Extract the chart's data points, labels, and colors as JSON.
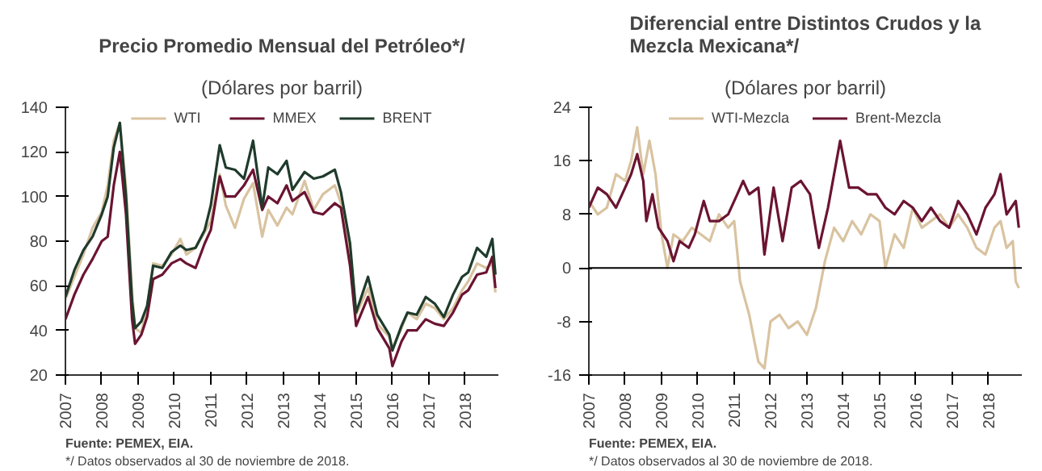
{
  "chart_data": [
    {
      "type": "line",
      "title": "Precio Promedio Mensual del Petróleo*/",
      "subtitle": "(Dólares por barril)",
      "x": [
        "2007-01",
        "2007-04",
        "2007-07",
        "2007-10",
        "2008-01",
        "2008-03",
        "2008-05",
        "2008-07",
        "2008-09",
        "2008-11",
        "2008-12",
        "2009-02",
        "2009-04",
        "2009-06",
        "2009-09",
        "2009-12",
        "2010-03",
        "2010-05",
        "2010-08",
        "2010-11",
        "2011-01",
        "2011-04",
        "2011-06",
        "2011-09",
        "2011-12",
        "2012-03",
        "2012-06",
        "2012-08",
        "2012-11",
        "2013-02",
        "2013-04",
        "2013-08",
        "2013-11",
        "2014-02",
        "2014-06",
        "2014-08",
        "2014-11",
        "2015-01",
        "2015-05",
        "2015-08",
        "2015-12",
        "2016-01",
        "2016-04",
        "2016-06",
        "2016-09",
        "2016-12",
        "2017-03",
        "2017-06",
        "2017-09",
        "2017-12",
        "2018-02",
        "2018-05",
        "2018-08",
        "2018-10",
        "2018-11"
      ],
      "series": [
        {
          "name": "WTI",
          "color": "#d9c3a0",
          "values": [
            54,
            64,
            74,
            86,
            93,
            105,
            125,
            133,
            104,
            57,
            41,
            39,
            50,
            70,
            69,
            74,
            81,
            74,
            77,
            84,
            89,
            110,
            96,
            86,
            99,
            106,
            82,
            94,
            87,
            95,
            92,
            107,
            94,
            101,
            105,
            97,
            76,
            47,
            59,
            43,
            37,
            32,
            41,
            48,
            45,
            52,
            50,
            45,
            50,
            58,
            62,
            70,
            68,
            70,
            57
          ]
        },
        {
          "name": "MMEX",
          "color": "#6b1432",
          "values": [
            45,
            56,
            65,
            72,
            80,
            82,
            105,
            120,
            92,
            45,
            34,
            38,
            46,
            63,
            65,
            70,
            72,
            70,
            68,
            79,
            85,
            109,
            100,
            100,
            105,
            112,
            94,
            100,
            97,
            105,
            98,
            102,
            93,
            92,
            97,
            95,
            69,
            42,
            55,
            41,
            32,
            24,
            35,
            40,
            40,
            45,
            43,
            42,
            48,
            56,
            58,
            65,
            66,
            73,
            59
          ]
        },
        {
          "name": "BRENT",
          "color": "#1f3b2c",
          "values": [
            55,
            67,
            76,
            82,
            92,
            100,
            122,
            133,
            100,
            53,
            41,
            44,
            51,
            69,
            68,
            75,
            78,
            76,
            77,
            85,
            96,
            123,
            113,
            112,
            108,
            125,
            95,
            113,
            110,
            116,
            103,
            111,
            108,
            109,
            112,
            102,
            79,
            48,
            64,
            47,
            38,
            31,
            42,
            48,
            47,
            55,
            52,
            46,
            56,
            64,
            66,
            77,
            73,
            81,
            65
          ]
        }
      ],
      "xlim": [
        "2007-01",
        "2018-12"
      ],
      "xticks": [
        "2007",
        "2008",
        "2009",
        "2010",
        "2011",
        "2012",
        "2013",
        "2014",
        "2015",
        "2016",
        "2017",
        "2018"
      ],
      "ylim": [
        20,
        140
      ],
      "yticks": [
        20,
        40,
        60,
        80,
        100,
        120,
        140
      ],
      "grid": false,
      "legend": "top",
      "marker": "none",
      "line_style": "solid",
      "annotations": [
        "Fuente: PEMEX, EIA.",
        "*/ Datos observados al 30 de noviembre de 2018."
      ]
    },
    {
      "type": "line",
      "title": "Diferencial entre Distintos Crudos y la Mezcla Mexicana*/",
      "subtitle": "(Dólares por barril)",
      "series": [
        {
          "name": "WTI-Mezcla",
          "color": "#d9c3a0",
          "x": [
            "2007-01",
            "2007-04",
            "2007-07",
            "2007-10",
            "2008-01",
            "2008-03",
            "2008-05",
            "2008-07",
            "2008-09",
            "2008-11",
            "2009-01",
            "2009-03",
            "2009-05",
            "2009-08",
            "2009-11",
            "2010-02",
            "2010-05",
            "2010-08",
            "2010-11",
            "2011-01",
            "2011-03",
            "2011-06",
            "2011-09",
            "2011-11",
            "2012-01",
            "2012-04",
            "2012-07",
            "2012-10",
            "2013-01",
            "2013-04",
            "2013-07",
            "2013-10",
            "2014-01",
            "2014-04",
            "2014-07",
            "2014-10",
            "2015-01",
            "2015-03",
            "2015-06",
            "2015-09",
            "2015-12",
            "2016-03",
            "2016-06",
            "2016-09",
            "2016-12",
            "2017-03",
            "2017-06",
            "2017-09",
            "2017-12",
            "2018-03",
            "2018-05",
            "2018-07",
            "2018-09",
            "2018-10",
            "2018-11"
          ],
          "values": [
            10,
            8,
            9,
            14,
            13,
            16,
            21,
            14,
            19,
            14,
            5,
            0,
            5,
            4,
            6,
            5,
            4,
            8,
            6,
            7,
            -2,
            -7,
            -14,
            -15,
            -8,
            -7,
            -9,
            -8,
            -10,
            -6,
            1,
            6,
            4,
            7,
            5,
            8,
            7,
            0,
            5,
            3,
            9,
            6,
            7,
            8,
            6,
            8,
            6,
            3,
            2,
            6,
            7,
            3,
            4,
            -2,
            -3
          ]
        },
        {
          "name": "Brent-Mezcla",
          "color": "#6b1432",
          "x": [
            "2007-01",
            "2007-04",
            "2007-07",
            "2007-10",
            "2008-01",
            "2008-03",
            "2008-05",
            "2008-07",
            "2008-08",
            "2008-10",
            "2008-12",
            "2009-03",
            "2009-05",
            "2009-07",
            "2009-10",
            "2009-12",
            "2010-03",
            "2010-05",
            "2010-08",
            "2010-11",
            "2011-02",
            "2011-04",
            "2011-06",
            "2011-09",
            "2011-11",
            "2012-02",
            "2012-05",
            "2012-08",
            "2012-11",
            "2013-02",
            "2013-05",
            "2013-08",
            "2013-12",
            "2014-03",
            "2014-06",
            "2014-09",
            "2014-12",
            "2015-03",
            "2015-06",
            "2015-09",
            "2015-12",
            "2016-03",
            "2016-06",
            "2016-09",
            "2016-12",
            "2017-03",
            "2017-06",
            "2017-09",
            "2017-12",
            "2018-03",
            "2018-05",
            "2018-07",
            "2018-10",
            "2018-11"
          ],
          "values": [
            9,
            12,
            11,
            9,
            12,
            14,
            17,
            13,
            7,
            11,
            6,
            4,
            1,
            4,
            3,
            5,
            10,
            7,
            7,
            8,
            11,
            13,
            11,
            12,
            2,
            12,
            4,
            12,
            13,
            11,
            3,
            9,
            19,
            12,
            12,
            11,
            11,
            9,
            8,
            10,
            9,
            7,
            9,
            7,
            6,
            10,
            8,
            5,
            9,
            11,
            14,
            8,
            10,
            6
          ]
        }
      ],
      "xlim": [
        "2007-01",
        "2018-12"
      ],
      "xticks": [
        "2007",
        "2008",
        "2009",
        "2010",
        "2011",
        "2012",
        "2013",
        "2014",
        "2015",
        "2016",
        "2017",
        "2018"
      ],
      "ylim": [
        -16,
        24
      ],
      "yticks": [
        -16,
        -8,
        0,
        8,
        16,
        24
      ],
      "grid": false,
      "legend": "top",
      "marker": "none",
      "line_style": "solid",
      "ref_lines": [
        {
          "axis": "y",
          "value": 0,
          "color": "#000000"
        }
      ],
      "annotations": [
        "Fuente: PEMEX, EIA.",
        "*/ Datos observados al 30 de noviembre de 2018."
      ]
    }
  ]
}
